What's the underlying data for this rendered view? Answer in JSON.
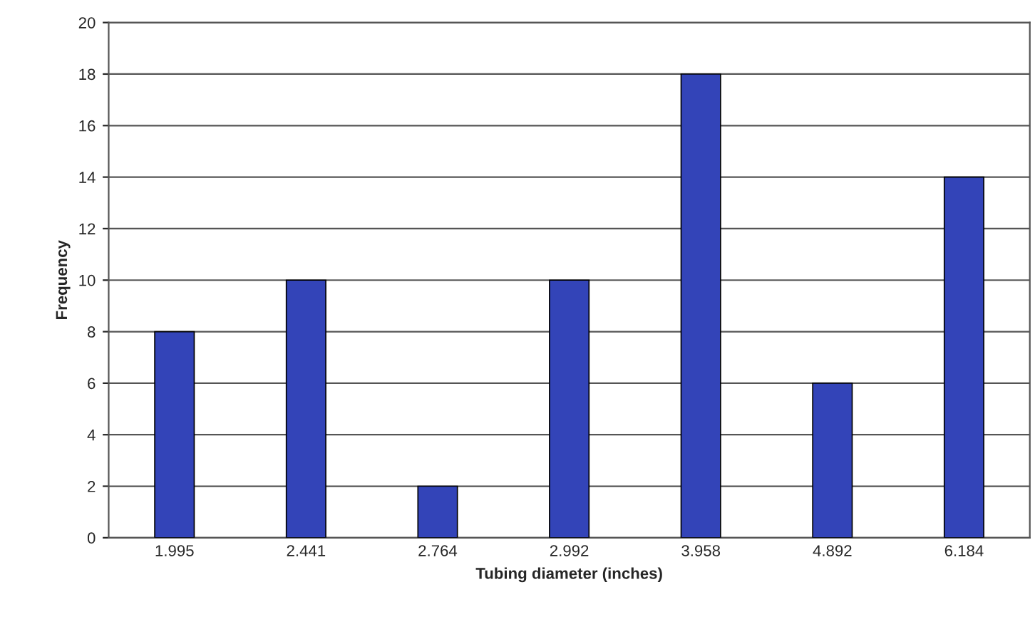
{
  "chart_data": {
    "type": "bar",
    "xlabel": "Tubing diameter (inches)",
    "ylabel": "Frequency",
    "categories": [
      "1.995",
      "2.441",
      "2.764",
      "2.992",
      "3.958",
      "4.892",
      "6.184"
    ],
    "values": [
      8,
      10,
      2,
      10,
      18,
      6,
      14
    ],
    "color": "#3344b8",
    "ylim": [
      0,
      20
    ],
    "yticks": [
      0,
      2,
      4,
      6,
      8,
      10,
      12,
      14,
      16,
      18,
      20
    ],
    "grid": "y",
    "legend": false
  }
}
